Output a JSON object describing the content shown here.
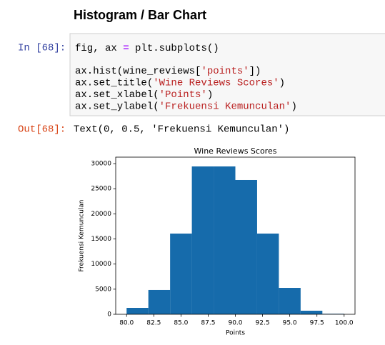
{
  "heading": "Histogram / Bar Chart",
  "input_prompt": "In [68]:",
  "code": [
    [
      "fig, ax ",
      "=",
      " plt.subplots()"
    ],
    [
      "ax.hist(wine_reviews[",
      "'points'",
      "])"
    ],
    [
      "ax.set_title(",
      "'Wine Reviews Scores'",
      ")"
    ],
    [
      "ax.set_xlabel(",
      "'Points'",
      ")"
    ],
    [
      "ax.set_ylabel(",
      "'Frekuensi Kemunculan'",
      ")"
    ]
  ],
  "output_prompt": "Out[68]:",
  "output_text": "Text(0, 0.5, 'Frekuensi Kemunculan')",
  "chart_data": {
    "type": "histogram",
    "title": "Wine Reviews Scores",
    "x_label": "Points",
    "y_label": "Frekuensi Kemunculan",
    "bins": [
      80,
      82,
      84,
      86,
      88,
      90,
      92,
      94,
      96,
      98,
      100
    ],
    "values": [
      1280,
      4840,
      16070,
      29440,
      29440,
      26740,
      16070,
      5260,
      710,
      100
    ],
    "color": "#166bab",
    "xlim": [
      79,
      101
    ],
    "xticks": [
      {
        "value": 80,
        "label": "80.0"
      },
      {
        "value": 82.5,
        "label": "82.5"
      },
      {
        "value": 85,
        "label": "85.0"
      },
      {
        "value": 87.5,
        "label": "87.5"
      },
      {
        "value": 90,
        "label": "90.0"
      },
      {
        "value": 92.5,
        "label": "92.5"
      },
      {
        "value": 95,
        "label": "95.0"
      },
      {
        "value": 97.5,
        "label": "97.5"
      },
      {
        "value": 100,
        "label": "100.0"
      }
    ],
    "ylim": [
      0,
      31290
    ],
    "yticks": [
      0,
      5000,
      10000,
      15000,
      20000,
      25000,
      30000
    ]
  }
}
